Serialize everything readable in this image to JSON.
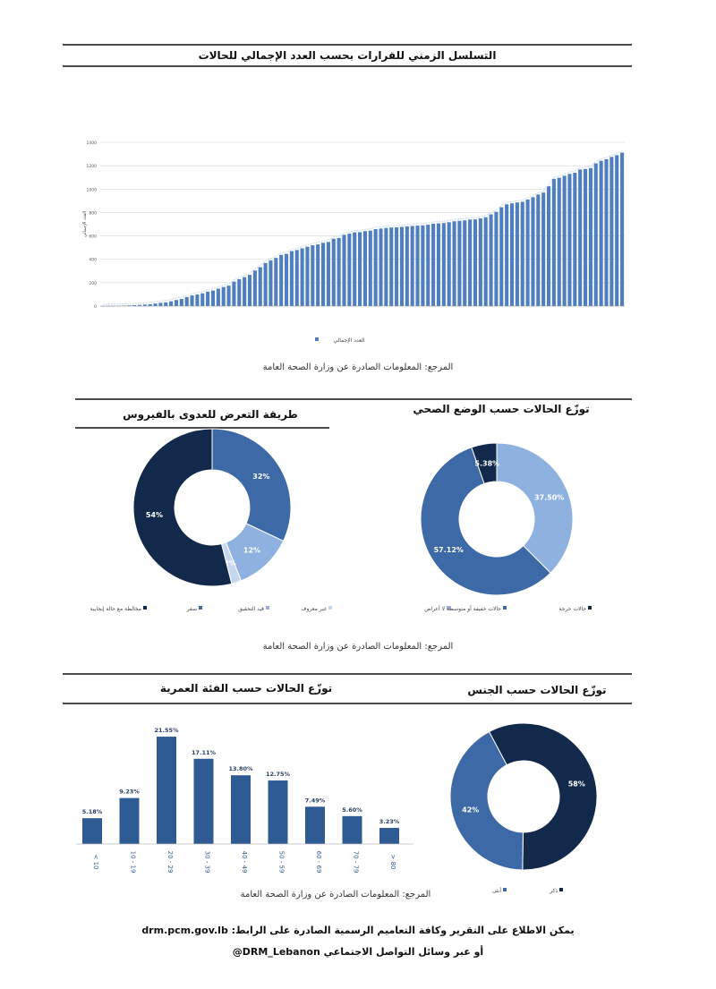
{
  "colors": {
    "dark": "#13294b",
    "mid": "#3d6aa6",
    "light": "#8fb1df",
    "pale": "#c7d7ef",
    "bar": "#2f5b95",
    "timeline_bar": "#4f7fc0"
  },
  "timeline": {
    "title": "التسلسل الزمني للقرارات بحسب العدد الإجمالي للحالات",
    "legend": "العدد الإجمالي",
    "source": "المرجع: المعلومات الصادرة عن وزارة الصحة العامة",
    "chart_data": {
      "type": "bar",
      "ylabel": "العدد الإجمالي",
      "ylim": [
        0,
        1400
      ],
      "yticks": [
        0,
        200,
        400,
        600,
        800,
        1000,
        1200,
        1400
      ],
      "grid": true,
      "legend_position": "bottom",
      "values": [
        1,
        1,
        2,
        2,
        4,
        6,
        8,
        10,
        13,
        16,
        22,
        28,
        32,
        41,
        52,
        61,
        77,
        91,
        99,
        109,
        124,
        133,
        149,
        163,
        175,
        209,
        230,
        248,
        267,
        304,
        333,
        368,
        391,
        412,
        438,
        446,
        470,
        479,
        494,
        508,
        520,
        527,
        541,
        548,
        576,
        582,
        609,
        619,
        630,
        632,
        641,
        645,
        658,
        663,
        668,
        672,
        673,
        677,
        682,
        685,
        688,
        690,
        696,
        704,
        707,
        710,
        717,
        725,
        729,
        733,
        740,
        741,
        750,
        760,
        784,
        806,
        845,
        870,
        878,
        886,
        891,
        911,
        931,
        954,
        970,
        1024,
        1088,
        1097,
        1114,
        1130,
        1140,
        1168,
        1172,
        1180,
        1220,
        1242,
        1256,
        1275,
        1290,
        1312
      ]
    }
  },
  "exposure": {
    "title": "طريقة التعرض للعدوى بالفيروس",
    "chart_data": {
      "type": "pie",
      "slices": [
        {
          "label": "سفر",
          "value": 32,
          "text": "32%",
          "color": "mid"
        },
        {
          "label": "قيد التحقيق",
          "value": 12,
          "text": "12%",
          "color": "light"
        },
        {
          "label": "غير معروف",
          "value": 2,
          "text": "2%",
          "color": "pale"
        },
        {
          "label": "مخالطة مع حالة إيجابية",
          "value": 54,
          "text": "54%",
          "color": "dark"
        }
      ]
    }
  },
  "health": {
    "title": "توزّع الحالات حسب الوضع الصحي",
    "chart_data": {
      "type": "pie",
      "slices": [
        {
          "label": "لا أعراض",
          "value": 37.5,
          "text": "37.50%",
          "color": "light"
        },
        {
          "label": "حالات خفيفة أو متوسطة",
          "value": 57.12,
          "text": "57.12%",
          "color": "mid"
        },
        {
          "label": "حالات حرجة",
          "value": 5.38,
          "text": "5.38%",
          "color": "dark"
        }
      ]
    }
  },
  "section2_source": "المرجع: المعلومات الصادرة عن وزارة الصحة العامة",
  "age": {
    "title": "توزّع الحالات حسب الفئة العمرية",
    "source": "المرجع: المعلومات الصادرة عن وزارة الصحة العامة",
    "chart_data": {
      "type": "bar",
      "categories": [
        "< 10",
        "10 - 19",
        "20 - 29",
        "30 - 39",
        "40 - 49",
        "50 - 59",
        "60 - 69",
        "70 - 79",
        "> 80"
      ],
      "values": [
        5.18,
        9.23,
        21.55,
        17.11,
        13.8,
        12.75,
        7.49,
        5.6,
        3.23
      ],
      "labels": [
        "5.18%",
        "9.23%",
        "21.55%",
        "17.11%",
        "13.80%",
        "12.75%",
        "7.49%",
        "5.60%",
        "3.23%"
      ],
      "ylim": [
        0,
        23
      ]
    }
  },
  "gender": {
    "title": "توزّع الحالات حسب الجنس",
    "chart_data": {
      "type": "pie",
      "slices": [
        {
          "label": "ذكر",
          "value": 58,
          "text": "58%",
          "color": "dark"
        },
        {
          "label": "أنثى",
          "value": 42,
          "text": "42%",
          "color": "mid"
        }
      ]
    }
  },
  "footer": {
    "line1": "يمكن الاطلاع على التقرير وكافة التعاميم الرسمية الصادرة على الرابط: drm.pcm.gov.lb",
    "line2": "أو عبر وسائل التواصل الاجتماعي DRM_Lebanon@"
  }
}
